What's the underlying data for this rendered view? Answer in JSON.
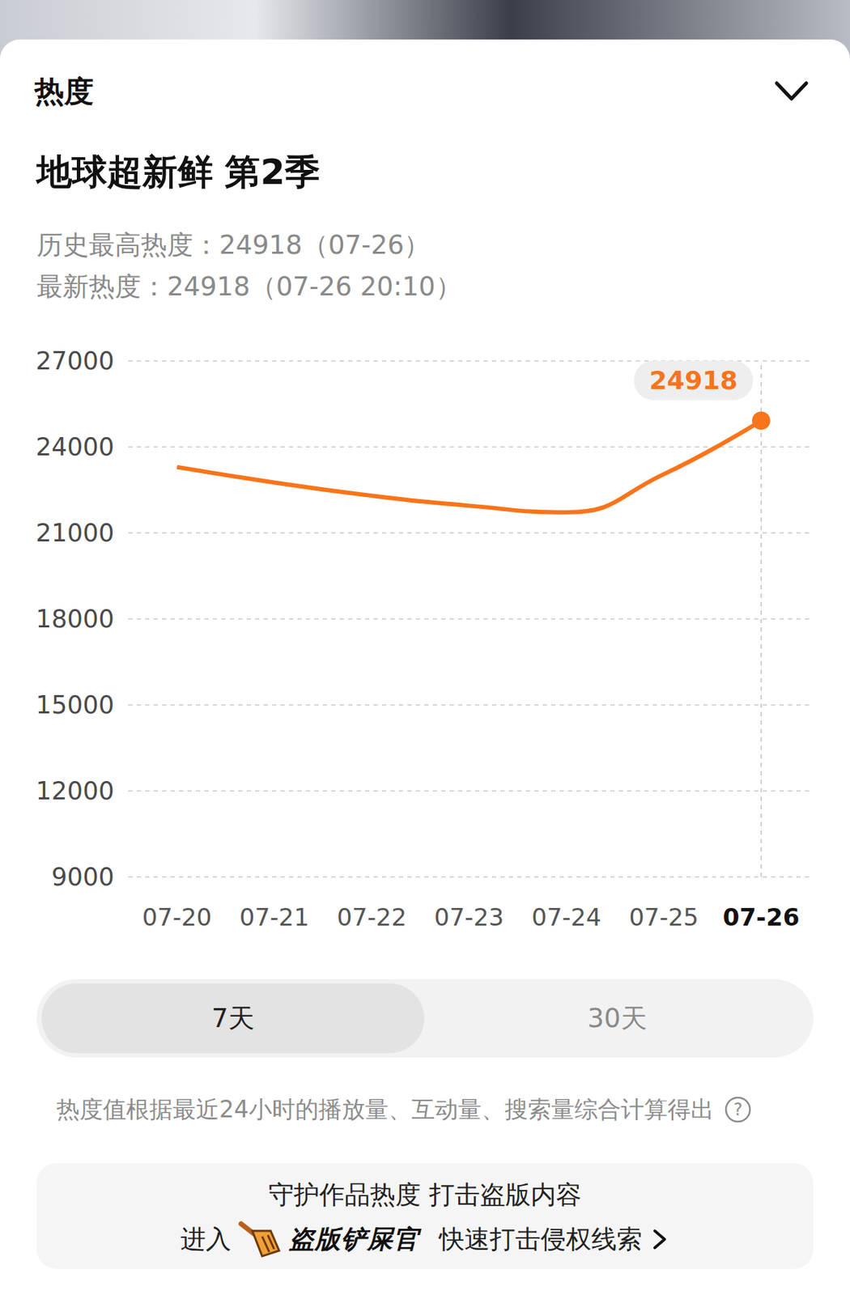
{
  "page": {
    "header": "热度",
    "title": "地球超新鲜 第2季",
    "stats": [
      "历史最高热度：24918（07-26）",
      "最新热度：24918（07-26 20:10）"
    ],
    "tabs": [
      {
        "label": "7天",
        "selected": true
      },
      {
        "label": "30天",
        "selected": false
      }
    ],
    "note": "热度值根据最近24小时的播放量、互动量、搜索量综合计算得出",
    "help_icon": "?",
    "banner": {
      "line1": "守护作品热度 打击盗版内容",
      "prefix": "进入",
      "brand": "盗版铲屎官",
      "suffix": "快速打击侵权线索"
    }
  },
  "chart_data": {
    "type": "line",
    "x": [
      "07-20",
      "07-21",
      "07-22",
      "07-23",
      "07-24",
      "07-25",
      "07-26"
    ],
    "values": [
      23300,
      22760,
      22300,
      21950,
      21720,
      23050,
      24918
    ],
    "color": "#f9741a",
    "ylim": [
      9000,
      27000
    ],
    "yticks": [
      9000,
      12000,
      15000,
      18000,
      21000,
      24000,
      27000
    ],
    "grid": true,
    "annotations": [
      {
        "x": "07-26",
        "value": 24918,
        "text": "24918"
      }
    ]
  }
}
